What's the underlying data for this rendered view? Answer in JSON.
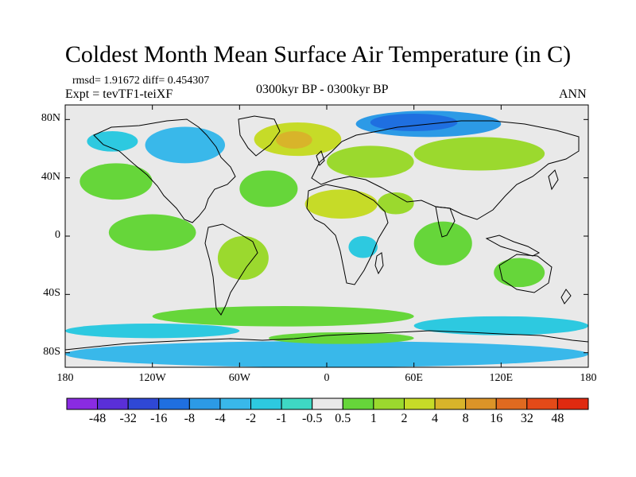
{
  "title": "Coldest Month Mean Surface Air Temperature (in C)",
  "stats_line": "rmsd= 1.91672 diff= 0.454307",
  "experiment_line": "Expt = tevTF1-teiXF",
  "period_line": "0300kyr BP - 0300kyr BP",
  "season": "ANN",
  "colors": {
    "ocean_neutral": "#e9e9e9",
    "coast": "#000000",
    "bins": [
      "#8a2be2",
      "#5a2fd8",
      "#2f48d6",
      "#1f6fe0",
      "#2c9ae6",
      "#39b8ea",
      "#2dc9e0",
      "#3ed8c4",
      "#e9e9e9",
      "#66d63a",
      "#9bd92e",
      "#c6db28",
      "#d8b42a",
      "#dc9428",
      "#e06a20",
      "#e44a18",
      "#e02a10"
    ]
  },
  "chart_data": {
    "type": "heatmap",
    "projection": "cylindrical equidistant",
    "lon_range": [
      -180,
      180
    ],
    "lat_range": [
      -90,
      90
    ],
    "x_ticks": [
      {
        "lon": -180,
        "label": "180"
      },
      {
        "lon": -120,
        "label": "120W"
      },
      {
        "lon": -60,
        "label": "60W"
      },
      {
        "lon": 0,
        "label": "0"
      },
      {
        "lon": 60,
        "label": "60E"
      },
      {
        "lon": 120,
        "label": "120E"
      },
      {
        "lon": 180,
        "label": "180"
      }
    ],
    "y_ticks": [
      {
        "lat": 80,
        "label": "80N"
      },
      {
        "lat": 40,
        "label": "40N"
      },
      {
        "lat": 0,
        "label": "0"
      },
      {
        "lat": -40,
        "label": "40S"
      },
      {
        "lat": -80,
        "label": "80S"
      }
    ],
    "colorbar": {
      "levels": [
        -48,
        -32,
        -16,
        -8,
        -4,
        -2,
        -1,
        -0.5,
        0.5,
        1,
        2,
        4,
        8,
        16,
        32,
        48
      ],
      "labels": [
        "-48",
        "-32",
        "-16",
        "-8",
        "-4",
        "-2",
        "-1",
        "-0.5",
        "0.5",
        "1",
        "2",
        "4",
        "8",
        "16",
        "32",
        "48"
      ]
    },
    "regions": [
      {
        "name": "arctic-ocean-cold",
        "bin": 4,
        "lon": [
          20,
          120
        ],
        "lat": [
          68,
          86
        ]
      },
      {
        "name": "arctic-core-cold",
        "bin": 3,
        "lon": [
          30,
          90
        ],
        "lat": [
          72,
          84
        ]
      },
      {
        "name": "canada-cold",
        "bin": 5,
        "lon": [
          -125,
          -70
        ],
        "lat": [
          50,
          75
        ]
      },
      {
        "name": "alaska-cold",
        "bin": 6,
        "lon": [
          -165,
          -130
        ],
        "lat": [
          58,
          72
        ]
      },
      {
        "name": "north-atlantic-warm",
        "bin": 11,
        "lon": [
          -50,
          10
        ],
        "lat": [
          55,
          78
        ]
      },
      {
        "name": "north-atlantic-core",
        "bin": 12,
        "lon": [
          -35,
          -10
        ],
        "lat": [
          60,
          72
        ]
      },
      {
        "name": "europe-warm",
        "bin": 10,
        "lon": [
          0,
          60
        ],
        "lat": [
          40,
          62
        ]
      },
      {
        "name": "siberia-warm",
        "bin": 10,
        "lon": [
          60,
          150
        ],
        "lat": [
          45,
          68
        ]
      },
      {
        "name": "sahara-warm",
        "bin": 11,
        "lon": [
          -15,
          35
        ],
        "lat": [
          12,
          32
        ]
      },
      {
        "name": "arabia-warm",
        "bin": 10,
        "lon": [
          35,
          60
        ],
        "lat": [
          15,
          30
        ]
      },
      {
        "name": "n-pacific-warm",
        "bin": 9,
        "lon": [
          -170,
          -120
        ],
        "lat": [
          25,
          50
        ]
      },
      {
        "name": "n-atlantic-subtrop",
        "bin": 9,
        "lon": [
          -60,
          -20
        ],
        "lat": [
          20,
          45
        ]
      },
      {
        "name": "tropical-pacific",
        "bin": 9,
        "lon": [
          -150,
          -90
        ],
        "lat": [
          -10,
          15
        ]
      },
      {
        "name": "tropical-indian",
        "bin": 9,
        "lon": [
          60,
          100
        ],
        "lat": [
          -20,
          10
        ]
      },
      {
        "name": "south-america-warm",
        "bin": 10,
        "lon": [
          -75,
          -40
        ],
        "lat": [
          -30,
          0
        ]
      },
      {
        "name": "australia-warm",
        "bin": 9,
        "lon": [
          115,
          150
        ],
        "lat": [
          -35,
          -15
        ]
      },
      {
        "name": "s-africa-cold",
        "bin": 6,
        "lon": [
          15,
          35
        ],
        "lat": [
          -15,
          0
        ]
      },
      {
        "name": "southern-ocean-green",
        "bin": 9,
        "lon": [
          -120,
          60
        ],
        "lat": [
          -62,
          -48
        ]
      },
      {
        "name": "southern-ocean-blue",
        "bin": 6,
        "lon": [
          60,
          180
        ],
        "lat": [
          -68,
          -55
        ]
      },
      {
        "name": "southern-ocean-blue-w",
        "bin": 6,
        "lon": [
          -180,
          -60
        ],
        "lat": [
          -70,
          -60
        ]
      },
      {
        "name": "antarctica-mixed",
        "bin": 5,
        "lon": [
          -180,
          180
        ],
        "lat": [
          -90,
          -72
        ]
      },
      {
        "name": "antarctica-warm-coast",
        "bin": 9,
        "lon": [
          -40,
          60
        ],
        "lat": [
          -74,
          -66
        ]
      }
    ]
  }
}
